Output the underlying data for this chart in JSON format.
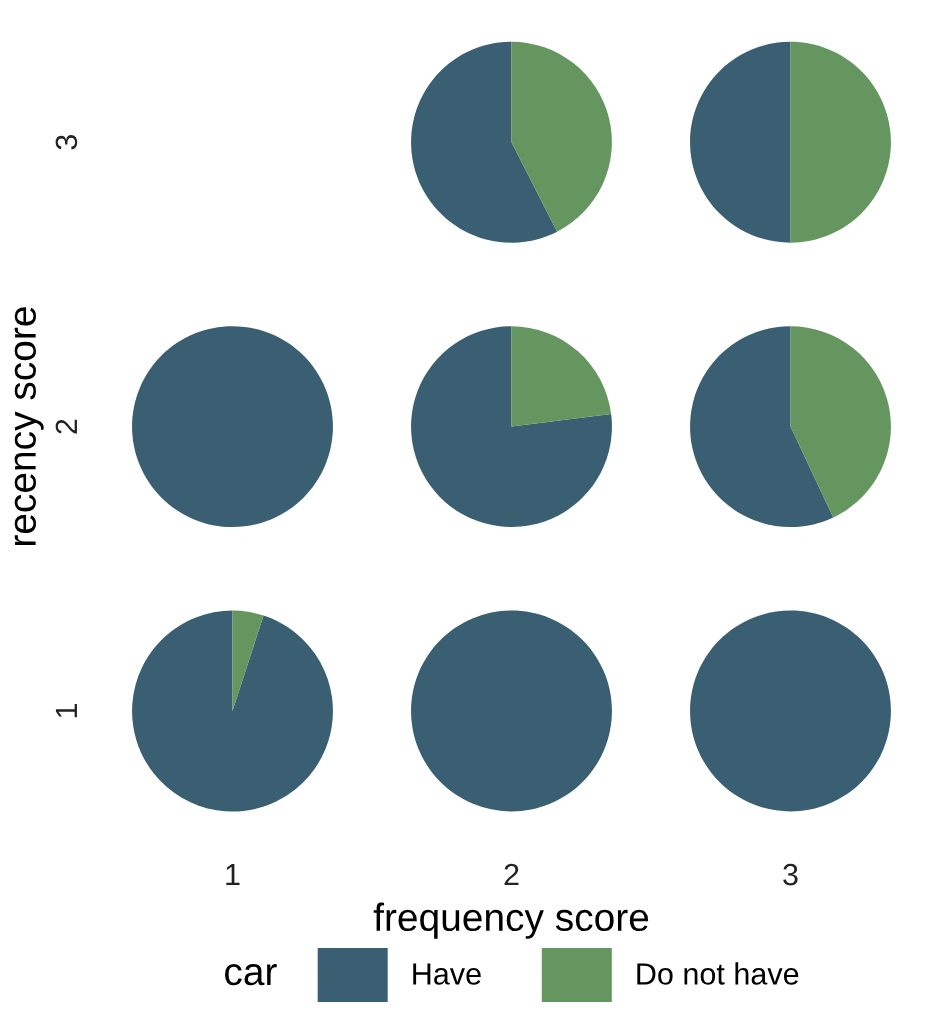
{
  "chart_data": [
    {
      "type": "other",
      "xlabel": "frequency score",
      "ylabel": "recency score",
      "categories": [
        "1",
        "2",
        "3"
      ],
      "y_categories": [
        "3",
        "2",
        "1"
      ]
    },
    {
      "type": "pie",
      "legend_title": "car",
      "legend": "bottom",
      "categories": [
        "Have",
        "Do not have"
      ],
      "values": [
        57.5,
        42.5
      ],
      "colors": [
        "#3a5e72",
        "#65965f"
      ]
    },
    {
      "type": "pie",
      "categories": [
        null,
        null
      ],
      "values": [
        50,
        50
      ],
      "colors": [
        "#3a5e72",
        "#65965f"
      ]
    },
    {
      "type": "pie",
      "categories": [
        null,
        null
      ],
      "values": [
        100,
        0
      ],
      "colors": [
        "#3a5e72",
        "#65965f"
      ]
    },
    {
      "type": "pie",
      "categories": [
        null,
        null
      ],
      "values": [
        77,
        23
      ],
      "colors": [
        "#3a5e72",
        "#65965f"
      ]
    },
    {
      "type": "pie",
      "categories": [
        null,
        null
      ],
      "values": [
        57,
        43
      ],
      "colors": [
        "#3a5e72",
        "#65965f"
      ]
    },
    {
      "type": "pie",
      "categories": [
        null,
        null
      ],
      "values": [
        95,
        5
      ],
      "colors": [
        "#3a5e72",
        "#65965f"
      ]
    },
    {
      "type": "pie",
      "categories": [
        null,
        null
      ],
      "values": [
        100,
        0
      ],
      "colors": [
        "#3a5e72",
        "#65965f"
      ]
    },
    {
      "type": "pie",
      "categories": [
        null,
        null
      ],
      "values": [
        100,
        0
      ],
      "colors": [
        "#3a5e72",
        "#65965f"
      ]
    }
  ]
}
